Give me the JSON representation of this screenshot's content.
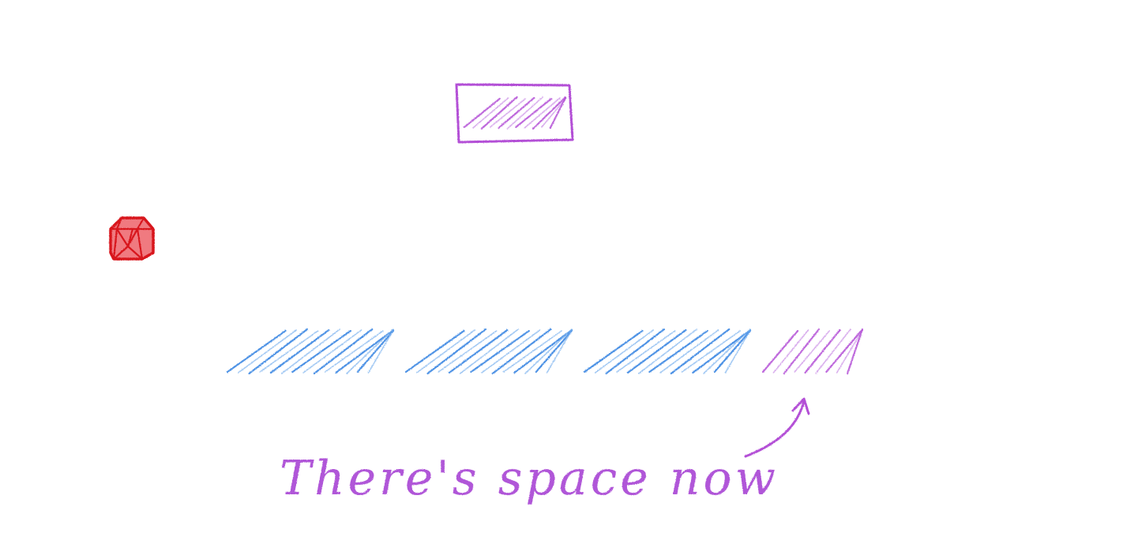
{
  "diagram": {
    "caption": "There's space now",
    "colors": {
      "purple": "#b34fd6",
      "purple_light": "#c98be6",
      "blue": "#2f7fe0",
      "blue_light": "#79b1ee",
      "ruby": "#d8141f",
      "ruby_light": "#f07a80"
    },
    "icons": {
      "ruby": "ruby-gem-icon",
      "arrow": "curved-arrow-icon"
    },
    "row_blocks": [
      {
        "kind": "existing",
        "color": "blue"
      },
      {
        "kind": "existing",
        "color": "blue"
      },
      {
        "kind": "existing",
        "color": "blue"
      },
      {
        "kind": "new",
        "color": "purple"
      }
    ]
  }
}
